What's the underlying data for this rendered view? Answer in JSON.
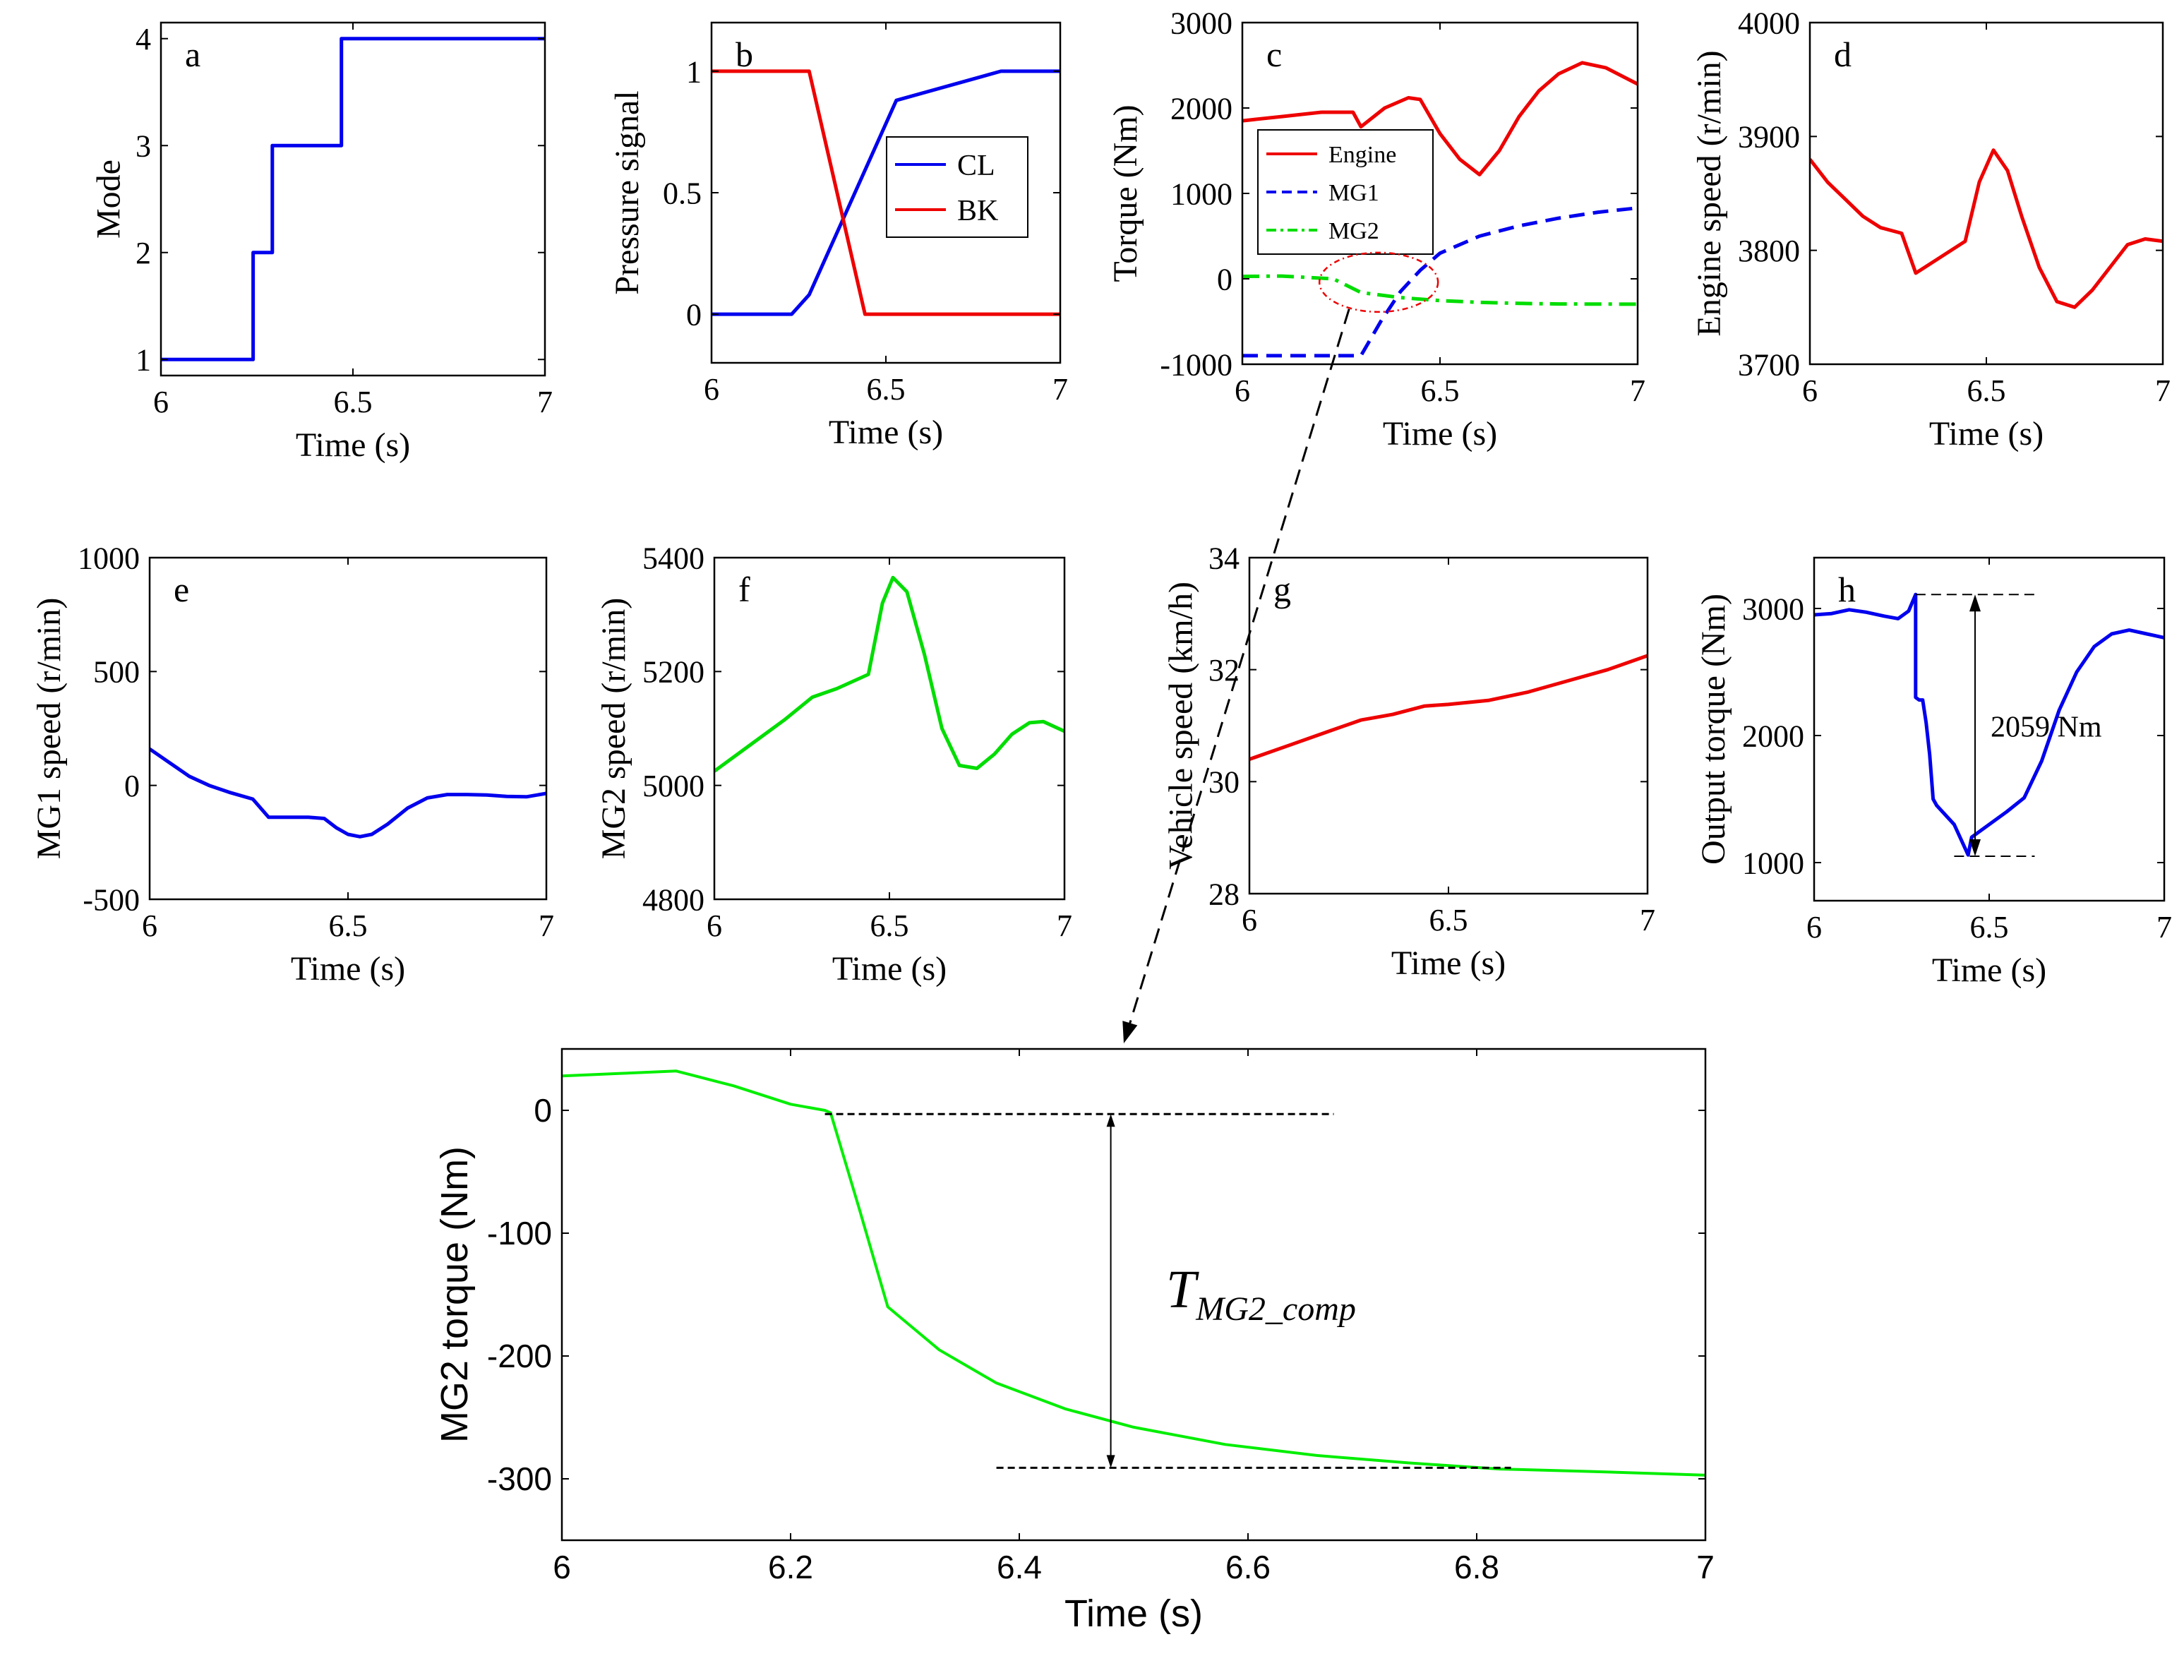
{
  "figure": {
    "background": "#ffffff",
    "axis_color": "#000000",
    "annotation_color": "#000000"
  },
  "chart_data": [
    {
      "id": "a",
      "type": "line",
      "panel_label": "a",
      "xlabel": "Time (s)",
      "ylabel": "Mode",
      "xlim": [
        6,
        7
      ],
      "ylim": [
        0.85,
        4.15
      ],
      "xticks": [
        6,
        6.5,
        7
      ],
      "xtick_labels": [
        "6",
        "6.5",
        "7"
      ],
      "yticks": [
        1,
        2,
        3,
        4
      ],
      "ytick_labels": [
        "1",
        "2",
        "3",
        "4"
      ],
      "series": [
        {
          "name": "Mode",
          "color": "#0000ee",
          "style": "solid",
          "x": [
            6,
            6.24,
            6.24,
            6.29,
            6.29,
            6.47,
            6.47,
            7
          ],
          "y": [
            1,
            1,
            2,
            2,
            3,
            3,
            4,
            4
          ]
        }
      ]
    },
    {
      "id": "b",
      "type": "line",
      "panel_label": "b",
      "xlabel": "Time (s)",
      "ylabel": "Pressure signal",
      "xlim": [
        6,
        7
      ],
      "ylim": [
        -0.2,
        1.2
      ],
      "xticks": [
        6,
        6.5,
        7
      ],
      "xtick_labels": [
        "6",
        "6.5",
        "7"
      ],
      "yticks": [
        0,
        0.5,
        1
      ],
      "ytick_labels": [
        "0",
        "0.5",
        "1"
      ],
      "legend": {
        "placement": "center-right",
        "entries": [
          "CL",
          "BK"
        ]
      },
      "series": [
        {
          "name": "CL",
          "color": "#0000ee",
          "style": "solid",
          "x": [
            6,
            6.23,
            6.28,
            6.53,
            6.83,
            7
          ],
          "y": [
            0,
            0,
            0.08,
            0.88,
            1,
            1
          ]
        },
        {
          "name": "BK",
          "color": "#ee0000",
          "style": "solid",
          "x": [
            6,
            6.28,
            6.44,
            7
          ],
          "y": [
            1,
            1,
            0,
            0
          ]
        }
      ]
    },
    {
      "id": "c",
      "type": "line",
      "panel_label": "c",
      "xlabel": "Time (s)",
      "ylabel": "Torque (Nm)",
      "xlim": [
        6,
        7
      ],
      "ylim": [
        -1000,
        3000
      ],
      "xticks": [
        6,
        6.5,
        7
      ],
      "xtick_labels": [
        "6",
        "6.5",
        "7"
      ],
      "yticks": [
        -1000,
        0,
        1000,
        2000,
        3000
      ],
      "ytick_labels": [
        "-1000",
        "0",
        "1000",
        "2000",
        "3000"
      ],
      "legend": {
        "placement": "middle-left",
        "entries": [
          "Engine",
          "MG1",
          "MG2"
        ]
      },
      "series": [
        {
          "name": "Engine",
          "color": "#ee0000",
          "style": "solid",
          "x": [
            6,
            6.1,
            6.2,
            6.28,
            6.3,
            6.36,
            6.42,
            6.45,
            6.5,
            6.55,
            6.6,
            6.65,
            6.7,
            6.75,
            6.8,
            6.86,
            6.92,
            7
          ],
          "y": [
            1850,
            1900,
            1950,
            1950,
            1780,
            2000,
            2120,
            2100,
            1700,
            1400,
            1220,
            1500,
            1900,
            2200,
            2400,
            2530,
            2470,
            2280
          ]
        },
        {
          "name": "MG1",
          "color": "#0000ee",
          "style": "dashed",
          "x": [
            6,
            6.3,
            6.35,
            6.4,
            6.45,
            6.5,
            6.6,
            6.7,
            6.8,
            6.9,
            7
          ],
          "y": [
            -900,
            -900,
            -500,
            -150,
            100,
            300,
            500,
            620,
            710,
            780,
            830
          ]
        },
        {
          "name": "MG2",
          "color": "#00dd00",
          "style": "dashdot",
          "x": [
            6,
            6.1,
            6.23,
            6.3,
            6.4,
            6.5,
            6.6,
            6.7,
            6.8,
            7
          ],
          "y": [
            28,
            32,
            0,
            -160,
            -220,
            -255,
            -275,
            -288,
            -294,
            -297
          ]
        }
      ]
    },
    {
      "id": "d",
      "type": "line",
      "panel_label": "d",
      "xlabel": "Time (s)",
      "ylabel": "Engine speed (r/min)",
      "xlim": [
        6,
        7
      ],
      "ylim": [
        3700,
        4000
      ],
      "xticks": [
        6,
        6.5,
        7
      ],
      "xtick_labels": [
        "6",
        "6.5",
        "7"
      ],
      "yticks": [
        3700,
        3800,
        3900,
        4000
      ],
      "ytick_labels": [
        "3700",
        "3800",
        "3900",
        "4000"
      ],
      "series": [
        {
          "name": "Engine speed",
          "color": "#ee0000",
          "style": "solid",
          "x": [
            6,
            6.05,
            6.1,
            6.15,
            6.2,
            6.26,
            6.3,
            6.35,
            6.4,
            6.44,
            6.48,
            6.52,
            6.56,
            6.6,
            6.65,
            6.7,
            6.75,
            6.8,
            6.85,
            6.9,
            6.95,
            7
          ],
          "y": [
            3880,
            3860,
            3845,
            3830,
            3820,
            3815,
            3780,
            3790,
            3800,
            3808,
            3860,
            3888,
            3870,
            3830,
            3785,
            3755,
            3750,
            3765,
            3785,
            3805,
            3810,
            3808
          ]
        }
      ]
    },
    {
      "id": "e",
      "type": "line",
      "panel_label": "e",
      "xlabel": "Time (s)",
      "ylabel": "MG1 speed (r/min)",
      "xlim": [
        6,
        7
      ],
      "ylim": [
        -500,
        1000
      ],
      "xticks": [
        6,
        6.5,
        7
      ],
      "xtick_labels": [
        "6",
        "6.5",
        "7"
      ],
      "yticks": [
        -500,
        0,
        500,
        1000
      ],
      "ytick_labels": [
        "-500",
        "0",
        "500",
        "1000"
      ],
      "series": [
        {
          "name": "MG1 speed",
          "color": "#0000ee",
          "style": "solid",
          "x": [
            6,
            6.05,
            6.1,
            6.15,
            6.2,
            6.26,
            6.3,
            6.35,
            6.4,
            6.44,
            6.47,
            6.5,
            6.53,
            6.56,
            6.6,
            6.65,
            6.7,
            6.75,
            6.8,
            6.85,
            6.9,
            6.95,
            7
          ],
          "y": [
            160,
            100,
            40,
            0,
            -30,
            -60,
            -140,
            -140,
            -140,
            -145,
            -185,
            -215,
            -225,
            -215,
            -170,
            -100,
            -55,
            -40,
            -40,
            -42,
            -48,
            -50,
            -35
          ]
        }
      ]
    },
    {
      "id": "f",
      "type": "line",
      "panel_label": "f",
      "xlabel": "Time (s)",
      "ylabel": "MG2 speed (r/min)",
      "xlim": [
        6,
        7
      ],
      "ylim": [
        4800,
        5400
      ],
      "xticks": [
        6,
        6.5,
        7
      ],
      "xtick_labels": [
        "6",
        "6.5",
        "7"
      ],
      "yticks": [
        4800,
        5000,
        5200,
        5400
      ],
      "ytick_labels": [
        "4800",
        "5000",
        "5200",
        "5400"
      ],
      "series": [
        {
          "name": "MG2 speed",
          "color": "#00dd00",
          "style": "solid",
          "x": [
            6,
            6.1,
            6.2,
            6.28,
            6.35,
            6.44,
            6.48,
            6.51,
            6.55,
            6.6,
            6.65,
            6.7,
            6.75,
            6.8,
            6.85,
            6.9,
            6.94,
            7
          ],
          "y": [
            5025,
            5070,
            5115,
            5155,
            5170,
            5195,
            5320,
            5365,
            5340,
            5230,
            5100,
            5035,
            5030,
            5055,
            5090,
            5110,
            5112,
            5095
          ]
        }
      ]
    },
    {
      "id": "g",
      "type": "line",
      "panel_label": "g",
      "xlabel": "Time (s)",
      "ylabel": "Vehicle speed (km/h)",
      "xlim": [
        6,
        7
      ],
      "ylim": [
        28,
        34
      ],
      "xticks": [
        6,
        6.5,
        7
      ],
      "xtick_labels": [
        "6",
        "6.5",
        "7"
      ],
      "yticks": [
        28,
        30,
        32,
        34
      ],
      "ytick_labels": [
        "28",
        "30",
        "32",
        "34"
      ],
      "series": [
        {
          "name": "Vehicle speed",
          "color": "#ee0000",
          "style": "solid",
          "x": [
            6,
            6.1,
            6.2,
            6.28,
            6.36,
            6.44,
            6.5,
            6.6,
            6.7,
            6.8,
            6.9,
            7
          ],
          "y": [
            30.4,
            30.65,
            30.9,
            31.1,
            31.2,
            31.35,
            31.38,
            31.45,
            31.6,
            31.8,
            32.0,
            32.25
          ]
        }
      ]
    },
    {
      "id": "h",
      "type": "line",
      "panel_label": "h",
      "xlabel": "Time (s)",
      "ylabel": "Output torque (Nm)",
      "xlim": [
        6,
        7
      ],
      "ylim": [
        700,
        3400
      ],
      "xticks": [
        6,
        6.5,
        7
      ],
      "xtick_labels": [
        "6",
        "6.5",
        "7"
      ],
      "yticks": [
        1000,
        2000,
        3000
      ],
      "ytick_labels": [
        "1000",
        "2000",
        "3000"
      ],
      "annotation": {
        "text": "2059 Nm",
        "x": 6.5,
        "y_top": 3110,
        "y_bottom": 1050
      },
      "series": [
        {
          "name": "Output torque",
          "color": "#0000ee",
          "style": "solid",
          "x": [
            6,
            6.05,
            6.1,
            6.15,
            6.2,
            6.24,
            6.27,
            6.29,
            6.29,
            6.3,
            6.31,
            6.32,
            6.33,
            6.34,
            6.35,
            6.4,
            6.44,
            6.45,
            6.5,
            6.55,
            6.6,
            6.65,
            6.7,
            6.75,
            6.8,
            6.85,
            6.9,
            6.95,
            7
          ],
          "y": [
            2950,
            2960,
            2990,
            2970,
            2940,
            2920,
            2980,
            3110,
            2300,
            2280,
            2280,
            2100,
            1850,
            1500,
            1450,
            1300,
            1060,
            1200,
            1300,
            1400,
            1510,
            1800,
            2200,
            2500,
            2700,
            2800,
            2830,
            2800,
            2770
          ]
        }
      ]
    },
    {
      "id": "zoom",
      "type": "line",
      "panel_label": "",
      "xlabel": "Time (s)",
      "ylabel": "MG2 torque (Nm)",
      "xlim": [
        6,
        7
      ],
      "ylim": [
        -350,
        50
      ],
      "xticks": [
        6,
        6.2,
        6.4,
        6.6,
        6.8,
        7
      ],
      "xtick_labels": [
        "6",
        "6.2",
        "6.4",
        "6.6",
        "6.8",
        "7"
      ],
      "yticks": [
        0,
        -100,
        -200,
        -300
      ],
      "ytick_labels": [
        "0",
        "-100",
        "-200",
        "-300"
      ],
      "annotation": {
        "text": "T",
        "subscript": "MG2_comp",
        "x": 6.48,
        "y_top": -3,
        "y_bottom": -291
      },
      "series": [
        {
          "name": "MG2 torque",
          "color": "#00ee00",
          "style": "solid",
          "x": [
            6,
            6.05,
            6.1,
            6.15,
            6.2,
            6.23,
            6.235,
            6.26,
            6.285,
            6.33,
            6.38,
            6.44,
            6.5,
            6.58,
            6.66,
            6.74,
            6.82,
            6.9,
            7
          ],
          "y": [
            28,
            30,
            32,
            20,
            5,
            0,
            -2,
            -80,
            -160,
            -195,
            -222,
            -243,
            -258,
            -272,
            -281,
            -287,
            -292,
            -294,
            -297
          ]
        }
      ]
    }
  ]
}
